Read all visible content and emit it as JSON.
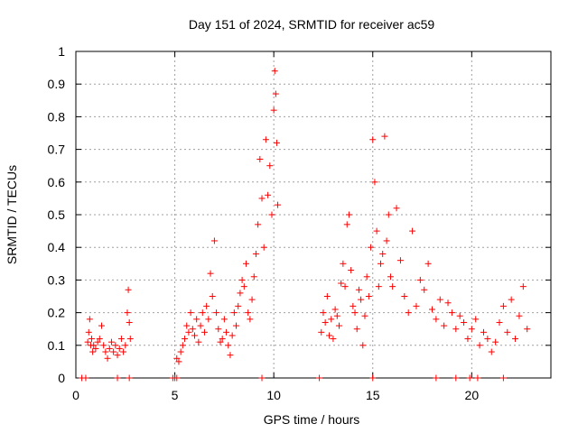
{
  "chart_data": {
    "type": "scatter",
    "title": "Day 151 of 2024, SRMTID for receiver ac59",
    "xlabel": "GPS time / hours",
    "ylabel": "SRMTID / TECUs",
    "xlim": [
      0,
      24
    ],
    "ylim": [
      0,
      1
    ],
    "xticks": [
      0,
      5,
      10,
      15,
      20
    ],
    "xtick_labels": [
      "0",
      "5",
      "10",
      "15",
      "20"
    ],
    "yticks": [
      0,
      0.1,
      0.2,
      0.3,
      0.4,
      0.5,
      0.6,
      0.7,
      0.8,
      0.9,
      1
    ],
    "ytick_labels": [
      "0",
      "0.1",
      "0.2",
      "0.3",
      "0.4",
      "0.5",
      "0.6",
      "0.7",
      "0.8",
      "0.9",
      "1"
    ],
    "grid": true,
    "marker": "+",
    "color": "#ff0000",
    "series": [
      {
        "name": "SRMTID",
        "x": [
          0.6,
          0.65,
          0.7,
          0.75,
          0.8,
          0.85,
          0.9,
          1.0,
          1.1,
          1.2,
          1.3,
          1.4,
          1.5,
          1.6,
          1.7,
          1.8,
          1.9,
          2.0,
          2.1,
          2.2,
          2.3,
          2.4,
          2.5,
          2.6,
          2.65,
          2.7,
          2.75,
          5.1,
          5.2,
          5.3,
          5.4,
          5.5,
          5.6,
          5.7,
          5.8,
          5.9,
          6.0,
          6.1,
          6.2,
          6.3,
          6.4,
          6.5,
          6.6,
          6.7,
          6.8,
          6.9,
          7.0,
          7.1,
          7.2,
          7.3,
          7.4,
          7.5,
          7.6,
          7.7,
          7.8,
          7.9,
          8.0,
          8.1,
          8.2,
          8.3,
          8.4,
          8.5,
          8.6,
          8.7,
          8.8,
          8.9,
          9.0,
          9.1,
          9.2,
          9.3,
          9.4,
          9.5,
          9.6,
          9.7,
          9.8,
          9.9,
          10.0,
          10.05,
          10.1,
          10.15,
          10.2,
          12.4,
          12.5,
          12.6,
          12.7,
          12.8,
          12.9,
          13.0,
          13.1,
          13.2,
          13.3,
          13.4,
          13.5,
          13.6,
          13.7,
          13.8,
          13.9,
          14.0,
          14.1,
          14.2,
          14.3,
          14.4,
          14.5,
          14.6,
          14.7,
          14.8,
          14.9,
          15.0,
          15.1,
          15.2,
          15.3,
          15.4,
          15.5,
          15.6,
          15.7,
          15.8,
          15.9,
          16.0,
          16.2,
          16.4,
          16.6,
          16.8,
          17.0,
          17.2,
          17.4,
          17.6,
          17.8,
          18.0,
          18.2,
          18.4,
          18.6,
          18.8,
          19.0,
          19.2,
          19.4,
          19.6,
          19.8,
          20.0,
          20.2,
          20.4,
          20.6,
          20.8,
          21.0,
          21.2,
          21.4,
          21.6,
          21.8,
          22.0,
          22.2,
          22.4,
          22.6,
          22.8
        ],
        "y": [
          0.11,
          0.14,
          0.18,
          0.1,
          0.12,
          0.08,
          0.1,
          0.09,
          0.11,
          0.12,
          0.16,
          0.1,
          0.08,
          0.06,
          0.09,
          0.11,
          0.08,
          0.1,
          0.07,
          0.09,
          0.12,
          0.08,
          0.1,
          0.2,
          0.27,
          0.17,
          0.12,
          0.06,
          0.05,
          0.08,
          0.1,
          0.12,
          0.16,
          0.14,
          0.2,
          0.15,
          0.13,
          0.18,
          0.11,
          0.16,
          0.2,
          0.14,
          0.22,
          0.18,
          0.32,
          0.25,
          0.42,
          0.2,
          0.15,
          0.11,
          0.12,
          0.18,
          0.14,
          0.1,
          0.07,
          0.13,
          0.2,
          0.16,
          0.22,
          0.26,
          0.3,
          0.28,
          0.35,
          0.2,
          0.18,
          0.24,
          0.31,
          0.38,
          0.47,
          0.67,
          0.55,
          0.4,
          0.73,
          0.56,
          0.65,
          0.5,
          0.82,
          0.94,
          0.87,
          0.72,
          0.53,
          0.14,
          0.2,
          0.17,
          0.25,
          0.13,
          0.18,
          0.12,
          0.21,
          0.19,
          0.16,
          0.29,
          0.35,
          0.28,
          0.47,
          0.5,
          0.33,
          0.22,
          0.2,
          0.15,
          0.27,
          0.24,
          0.1,
          0.19,
          0.31,
          0.25,
          0.4,
          0.73,
          0.6,
          0.45,
          0.28,
          0.35,
          0.38,
          0.74,
          0.42,
          0.5,
          0.31,
          0.28,
          0.52,
          0.36,
          0.25,
          0.2,
          0.45,
          0.22,
          0.3,
          0.27,
          0.35,
          0.21,
          0.18,
          0.24,
          0.16,
          0.23,
          0.2,
          0.15,
          0.19,
          0.17,
          0.12,
          0.15,
          0.18,
          0.1,
          0.14,
          0.12,
          0.08,
          0.11,
          0.17,
          0.22,
          0.14,
          0.24,
          0.12,
          0.19,
          0.28,
          0.15
        ]
      }
    ],
    "gap_markers_x": [
      0.3,
      0.5,
      2.1,
      2.7,
      4.9,
      5.0,
      5.1,
      9.4,
      12.3,
      15.0,
      18.2,
      19.2,
      19.9,
      20.3,
      21.6
    ]
  }
}
